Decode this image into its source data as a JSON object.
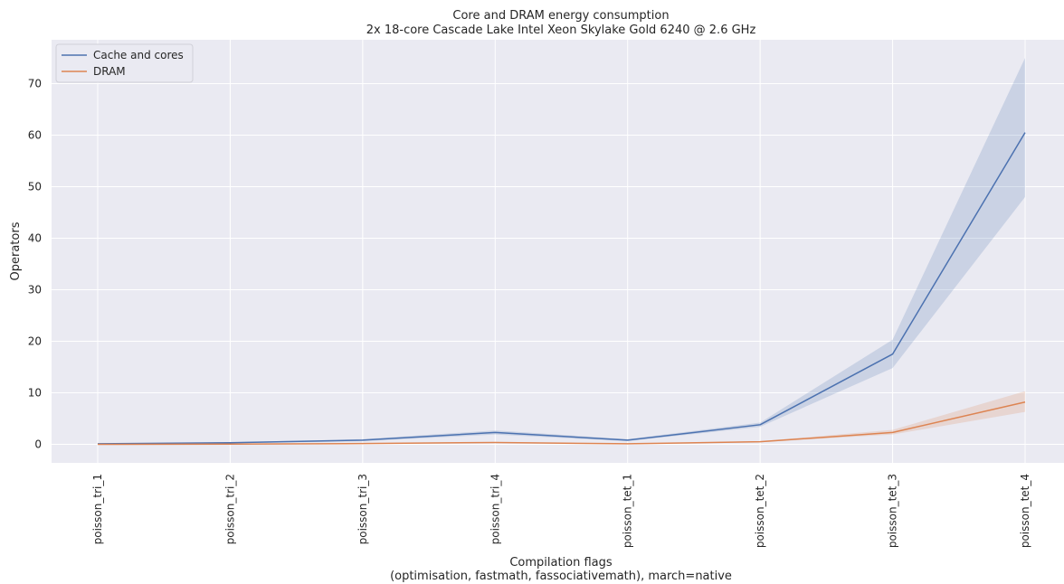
{
  "chart_data": {
    "type": "line",
    "title": "Core and DRAM energy consumption",
    "subtitle": "2x 18-core Cascade Lake Intel Xeon Skylake Gold 6240 @ 2.6 GHz",
    "xlabel": "Compilation flags",
    "xlabel_line2": "(optimisation, fastmath, fassociativemath), march=native",
    "ylabel": "Operators",
    "categories": [
      "poisson_tri_1",
      "poisson_tri_2",
      "poisson_tri_3",
      "poisson_tri_4",
      "poisson_tet_1",
      "poisson_tet_2",
      "poisson_tet_3",
      "poisson_tet_4"
    ],
    "ylim": [
      -3.6,
      78.5
    ],
    "yticks": [
      0,
      10,
      20,
      30,
      40,
      50,
      60,
      70
    ],
    "grid": true,
    "legend_position": "top-left",
    "series": [
      {
        "name": "Cache and cores",
        "color": "#4c72b0",
        "values": [
          0.1,
          0.3,
          0.8,
          2.3,
          0.8,
          3.8,
          17.5,
          60.5
        ],
        "lower": [
          0.05,
          0.2,
          0.6,
          1.9,
          0.6,
          3.4,
          14.8,
          48.0
        ],
        "upper": [
          0.15,
          0.4,
          1.0,
          2.7,
          1.0,
          4.2,
          20.3,
          75.0
        ]
      },
      {
        "name": "DRAM",
        "color": "#dd8452",
        "values": [
          0.0,
          0.05,
          0.15,
          0.35,
          0.1,
          0.5,
          2.3,
          8.2
        ],
        "lower": [
          0.0,
          0.02,
          0.1,
          0.25,
          0.05,
          0.4,
          1.9,
          6.3
        ],
        "upper": [
          0.02,
          0.08,
          0.2,
          0.45,
          0.15,
          0.6,
          2.8,
          10.3
        ]
      }
    ]
  }
}
